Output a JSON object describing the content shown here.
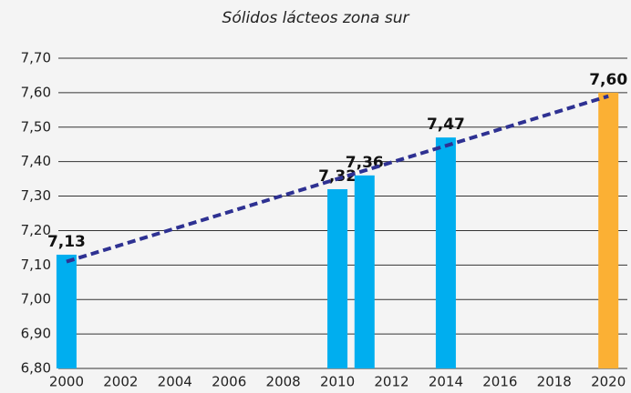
{
  "chart_data": {
    "type": "bar",
    "title": "Sólidos lácteos zona sur",
    "x": [
      2000,
      2010,
      2011,
      2014,
      2020
    ],
    "values": [
      7.13,
      7.32,
      7.36,
      7.47,
      7.6
    ],
    "value_labels": [
      "7,13",
      "7,32",
      "7,36",
      "7,47",
      "7,60"
    ],
    "colors": [
      "#00aeef",
      "#00aeef",
      "#00aeef",
      "#00aeef",
      "#fbb034"
    ],
    "xlim": [
      1999.7,
      2020.7
    ],
    "xticks": [
      2000,
      2002,
      2004,
      2006,
      2008,
      2010,
      2012,
      2014,
      2016,
      2018,
      2020
    ],
    "ylim": [
      6.8,
      7.7
    ],
    "yticks": [
      {
        "value": 6.8,
        "label": "6,80"
      },
      {
        "value": 6.9,
        "label": "6,90"
      },
      {
        "value": 7.0,
        "label": "7,00"
      },
      {
        "value": 7.1,
        "label": "7,10"
      },
      {
        "value": 7.2,
        "label": "7,20"
      },
      {
        "value": 7.3,
        "label": "7,30"
      },
      {
        "value": 7.4,
        "label": "7,40"
      },
      {
        "value": 7.5,
        "label": "7,50"
      },
      {
        "value": 7.6,
        "label": "7,60"
      },
      {
        "value": 7.7,
        "label": "7,70"
      }
    ],
    "grid": true,
    "trendline": {
      "x": [
        2000,
        2020
      ],
      "values": [
        7.11,
        7.59
      ],
      "color": "#2e3192"
    }
  }
}
